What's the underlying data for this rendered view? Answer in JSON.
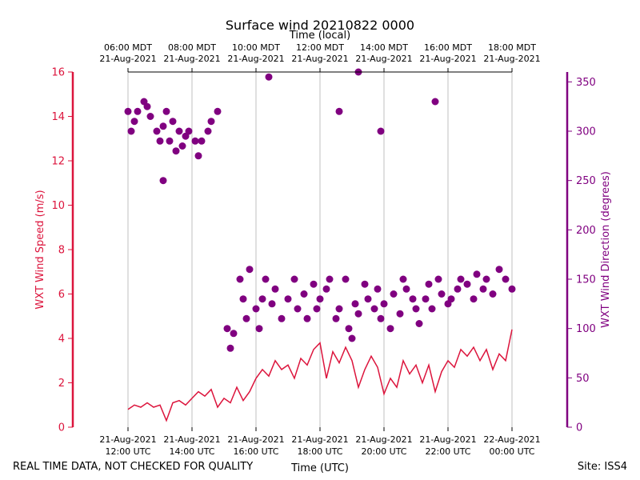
{
  "chart_data": {
    "type": "scatter",
    "title": "Surface wind 20210822 0000",
    "top_axis_label": "Time (local)",
    "xlabel": "Time (UTC)",
    "ylabel_left": "WXT Wind Speed (m/s)",
    "ylabel_right": "WXT Wind Direction (degrees)",
    "footer_left": "REAL TIME DATA, NOT CHECKED FOR QUALITY",
    "footer_right": "Site: ISS4",
    "x_range_hours_utc": [
      12,
      24
    ],
    "ylim_left": [
      0,
      16
    ],
    "ylim_right": [
      0,
      360
    ],
    "grid": "vertical",
    "colors": {
      "speed": "#dc143c",
      "direction": "#800080",
      "grid": "#b0b0b0"
    },
    "yticks_left": [
      0,
      2,
      4,
      6,
      8,
      10,
      12,
      14,
      16
    ],
    "yticks_right": [
      0,
      50,
      100,
      150,
      200,
      250,
      300,
      350
    ],
    "xticks_bottom": [
      {
        "hour": 12,
        "line1": "21-Aug-2021",
        "line2": "12:00 UTC"
      },
      {
        "hour": 14,
        "line1": "21-Aug-2021",
        "line2": "14:00 UTC"
      },
      {
        "hour": 16,
        "line1": "21-Aug-2021",
        "line2": "16:00 UTC"
      },
      {
        "hour": 18,
        "line1": "21-Aug-2021",
        "line2": "18:00 UTC"
      },
      {
        "hour": 20,
        "line1": "21-Aug-2021",
        "line2": "20:00 UTC"
      },
      {
        "hour": 22,
        "line1": "21-Aug-2021",
        "line2": "22:00 UTC"
      },
      {
        "hour": 24,
        "line1": "22-Aug-2021",
        "line2": "00:00 UTC"
      }
    ],
    "xticks_top": [
      {
        "hour": 12,
        "line1": "06:00 MDT",
        "line2": "21-Aug-2021"
      },
      {
        "hour": 14,
        "line1": "08:00 MDT",
        "line2": "21-Aug-2021"
      },
      {
        "hour": 16,
        "line1": "10:00 MDT",
        "line2": "21-Aug-2021"
      },
      {
        "hour": 18,
        "line1": "12:00 MDT",
        "line2": "21-Aug-2021"
      },
      {
        "hour": 20,
        "line1": "14:00 MDT",
        "line2": "21-Aug-2021"
      },
      {
        "hour": 22,
        "line1": "16:00 MDT",
        "line2": "21-Aug-2021"
      },
      {
        "hour": 24,
        "line1": "18:00 MDT",
        "line2": "21-Aug-2021"
      }
    ],
    "series": [
      {
        "name": "WXT Wind Speed",
        "axis": "left",
        "style": "line",
        "units": "m/s",
        "x_hours_utc": [
          12.0,
          12.2,
          12.4,
          12.6,
          12.8,
          13.0,
          13.2,
          13.4,
          13.6,
          13.8,
          14.0,
          14.2,
          14.4,
          14.6,
          14.8,
          15.0,
          15.2,
          15.4,
          15.6,
          15.8,
          16.0,
          16.2,
          16.4,
          16.6,
          16.8,
          17.0,
          17.2,
          17.4,
          17.6,
          17.8,
          18.0,
          18.2,
          18.4,
          18.6,
          18.8,
          19.0,
          19.2,
          19.4,
          19.6,
          19.8,
          20.0,
          20.2,
          20.4,
          20.6,
          20.8,
          21.0,
          21.2,
          21.4,
          21.6,
          21.8,
          22.0,
          22.2,
          22.4,
          22.6,
          22.8,
          23.0,
          23.2,
          23.4,
          23.6,
          23.8,
          24.0
        ],
        "values": [
          0.8,
          1.0,
          0.9,
          1.1,
          0.9,
          1.0,
          0.3,
          1.1,
          1.2,
          1.0,
          1.3,
          1.6,
          1.4,
          1.7,
          0.9,
          1.3,
          1.1,
          1.8,
          1.2,
          1.6,
          2.2,
          2.6,
          2.3,
          3.0,
          2.6,
          2.8,
          2.2,
          3.1,
          2.8,
          3.5,
          3.8,
          2.2,
          3.4,
          2.9,
          3.6,
          3.0,
          1.8,
          2.6,
          3.2,
          2.7,
          1.5,
          2.2,
          1.8,
          3.0,
          2.4,
          2.8,
          2.0,
          2.8,
          1.6,
          2.5,
          3.0,
          2.7,
          3.5,
          3.2,
          3.6,
          3.0,
          3.5,
          2.6,
          3.3,
          3.0,
          4.4
        ]
      },
      {
        "name": "WXT Wind Direction",
        "axis": "right",
        "style": "markers",
        "units": "degrees",
        "x_hours_utc": [
          12.0,
          12.1,
          12.2,
          12.3,
          12.5,
          12.6,
          12.7,
          12.9,
          13.0,
          13.1,
          13.2,
          13.3,
          13.4,
          13.5,
          13.6,
          13.7,
          13.8,
          13.9,
          14.1,
          14.2,
          14.3,
          14.5,
          14.6,
          14.8,
          15.1,
          15.2,
          15.3,
          15.5,
          15.6,
          15.7,
          15.8,
          16.0,
          16.1,
          16.2,
          16.3,
          16.5,
          16.6,
          16.8,
          17.0,
          17.2,
          17.3,
          17.5,
          17.6,
          17.8,
          17.9,
          18.0,
          18.2,
          18.3,
          18.5,
          18.6,
          18.8,
          18.9,
          19.0,
          19.1,
          19.2,
          19.4,
          19.5,
          19.7,
          19.8,
          19.9,
          20.0,
          20.2,
          20.3,
          20.5,
          20.6,
          20.7,
          20.9,
          21.0,
          21.1,
          21.3,
          21.4,
          21.5,
          21.7,
          21.8,
          22.0,
          22.1,
          22.3,
          22.4,
          22.6,
          22.8,
          22.9,
          23.1,
          23.2,
          23.4,
          23.6,
          23.8,
          24.0,
          21.6,
          19.2,
          18.6,
          13.1,
          16.4,
          19.9
        ],
        "values": [
          320,
          300,
          310,
          320,
          330,
          325,
          315,
          300,
          290,
          305,
          320,
          290,
          310,
          280,
          300,
          285,
          295,
          300,
          290,
          275,
          290,
          300,
          310,
          320,
          100,
          80,
          95,
          150,
          130,
          110,
          160,
          120,
          100,
          130,
          150,
          125,
          140,
          110,
          130,
          150,
          120,
          135,
          110,
          145,
          120,
          130,
          140,
          150,
          110,
          120,
          150,
          100,
          90,
          125,
          115,
          145,
          130,
          120,
          140,
          110,
          125,
          100,
          135,
          115,
          150,
          140,
          130,
          120,
          105,
          130,
          145,
          120,
          150,
          135,
          125,
          130,
          140,
          150,
          145,
          130,
          155,
          140,
          150,
          135,
          160,
          150,
          140,
          330,
          360,
          320,
          250,
          355,
          300
        ]
      }
    ]
  }
}
